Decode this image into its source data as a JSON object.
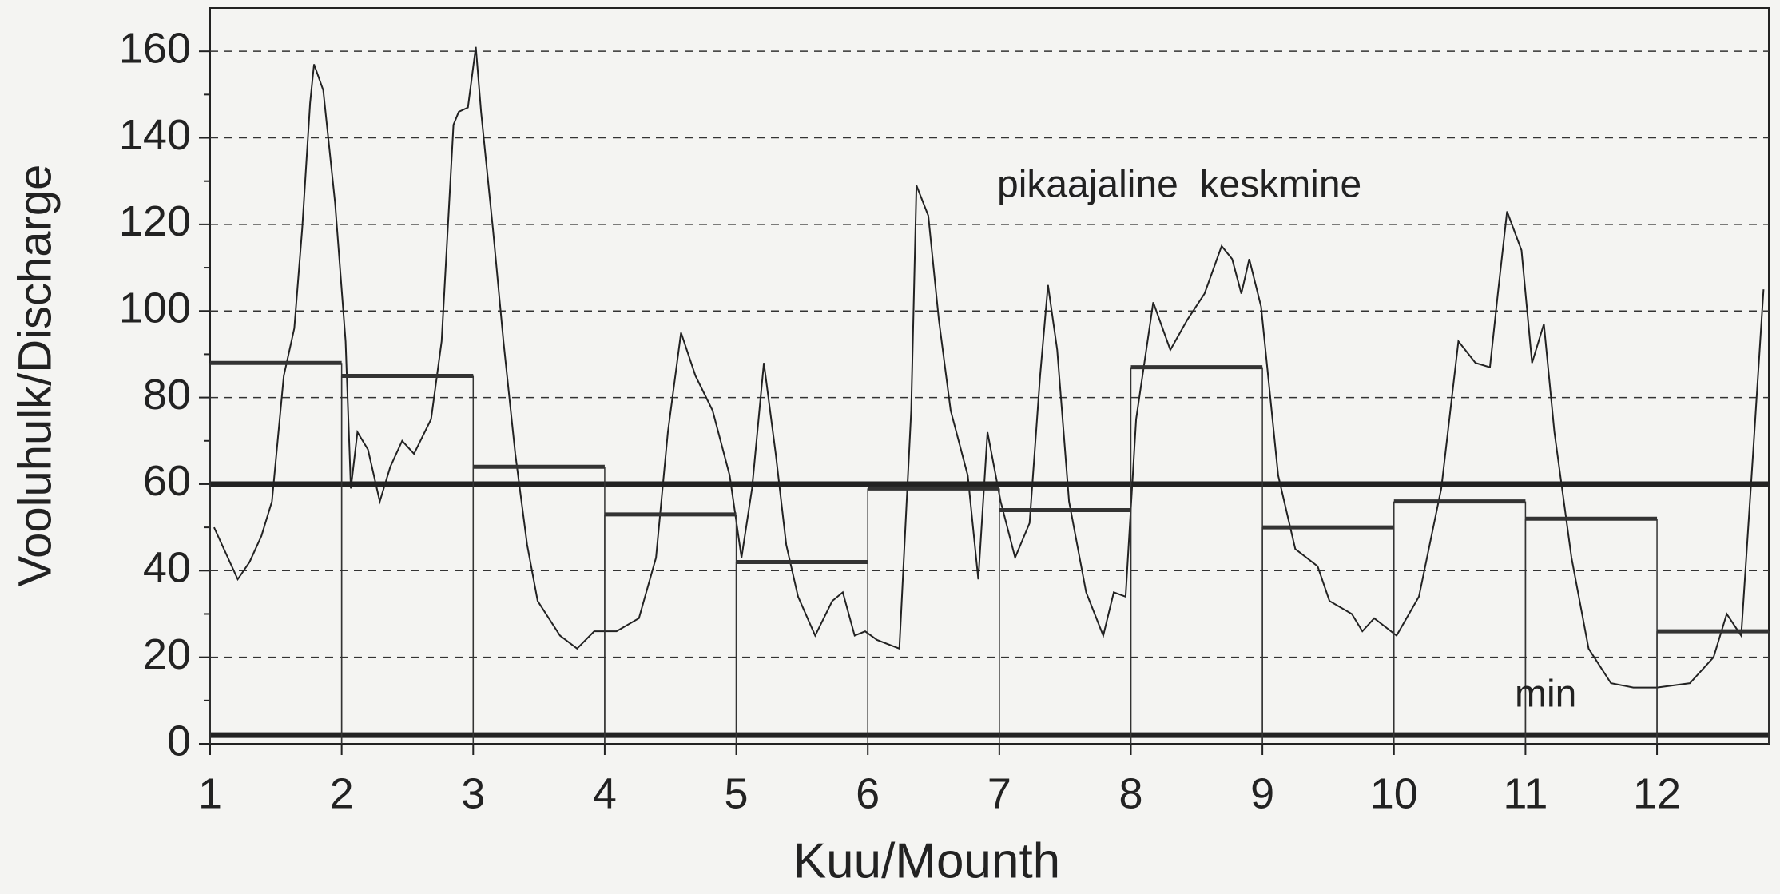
{
  "chart_data": {
    "type": "line",
    "xlabel": "Kuu/Mounth",
    "ylabel": "Vooluhulk/Discharge",
    "xlim": [
      1,
      12.85
    ],
    "ylim": [
      0,
      170
    ],
    "xticks": [
      1,
      2,
      3,
      4,
      5,
      6,
      7,
      8,
      9,
      10,
      11,
      12
    ],
    "yticks": [
      0,
      20,
      40,
      60,
      80,
      100,
      120,
      140,
      160
    ],
    "yminorticks": [
      10,
      30,
      50,
      70,
      90,
      110,
      130,
      150
    ],
    "grid": true,
    "series": [
      {
        "color": "#222222",
        "x": [
          1.03,
          1.21,
          1.3,
          1.39,
          1.47,
          1.56,
          1.64,
          1.7,
          1.76,
          1.79,
          1.86,
          1.95,
          2.03,
          2.07,
          2.12,
          2.2,
          2.29,
          2.37,
          2.46,
          2.55,
          2.68,
          2.76,
          2.85,
          2.89,
          2.96,
          3.02,
          3.06,
          3.15,
          3.23,
          3.32,
          3.41,
          3.49,
          3.66,
          3.79,
          3.92,
          4.09,
          4.26,
          4.39,
          4.48,
          4.58,
          4.69,
          4.82,
          4.95,
          5.04,
          5.12,
          5.21,
          5.3,
          5.38,
          5.47,
          5.6,
          5.73,
          5.81,
          5.9,
          5.98,
          6.07,
          6.24,
          6.33,
          6.37,
          6.46,
          6.54,
          6.63,
          6.76,
          6.84,
          6.91,
          7.01,
          7.12,
          7.23,
          7.31,
          7.37,
          7.44,
          7.53,
          7.66,
          7.79,
          7.87,
          7.96,
          8.04,
          8.17,
          8.3,
          8.43,
          8.56,
          8.69,
          8.77,
          8.84,
          8.9,
          8.99,
          9.12,
          9.25,
          9.42,
          9.51,
          9.68,
          9.76,
          9.85,
          10.02,
          10.19,
          10.36,
          10.49,
          10.62,
          10.73,
          10.79,
          10.86,
          10.97,
          11.05,
          11.14,
          11.22,
          11.35,
          11.48,
          11.65,
          11.82,
          12.0,
          12.25,
          12.43,
          12.53,
          12.64,
          12.73,
          12.81
        ],
        "values": [
          50,
          38,
          42,
          48,
          56,
          85,
          96,
          119,
          148,
          157,
          151,
          125,
          93,
          59,
          72,
          68,
          56,
          64,
          70,
          67,
          75,
          93,
          143,
          146,
          147,
          161,
          146,
          119,
          93,
          67,
          46,
          33,
          25,
          22,
          26,
          26,
          29,
          43,
          72,
          95,
          85,
          77,
          62,
          43,
          59,
          88,
          67,
          46,
          34,
          25,
          33,
          35,
          25,
          26,
          24,
          22,
          77,
          129,
          122,
          98,
          77,
          62,
          38,
          72,
          56,
          43,
          51,
          85,
          106,
          91,
          56,
          35,
          25,
          35,
          34,
          75,
          102,
          91,
          98,
          104,
          115,
          112,
          104,
          112,
          101,
          62,
          45,
          41,
          33,
          30,
          26,
          29,
          25,
          34,
          59,
          93,
          88,
          87,
          104,
          123,
          114,
          88,
          97,
          72,
          43,
          22,
          14,
          13,
          13,
          14,
          20,
          30,
          25,
          67,
          105
        ]
      },
      {
        "type": "step",
        "color": "#333333",
        "x": [
          1,
          2,
          3,
          4,
          5,
          6,
          7,
          8,
          9,
          10,
          11,
          12
        ],
        "values": [
          88,
          85,
          64,
          53,
          42,
          59,
          54,
          87,
          50,
          56,
          52,
          26
        ]
      }
    ],
    "hlines": [
      {
        "value": 60,
        "label": "pikaajaline  keskmine"
      },
      {
        "value": 2,
        "label": "min"
      }
    ]
  }
}
